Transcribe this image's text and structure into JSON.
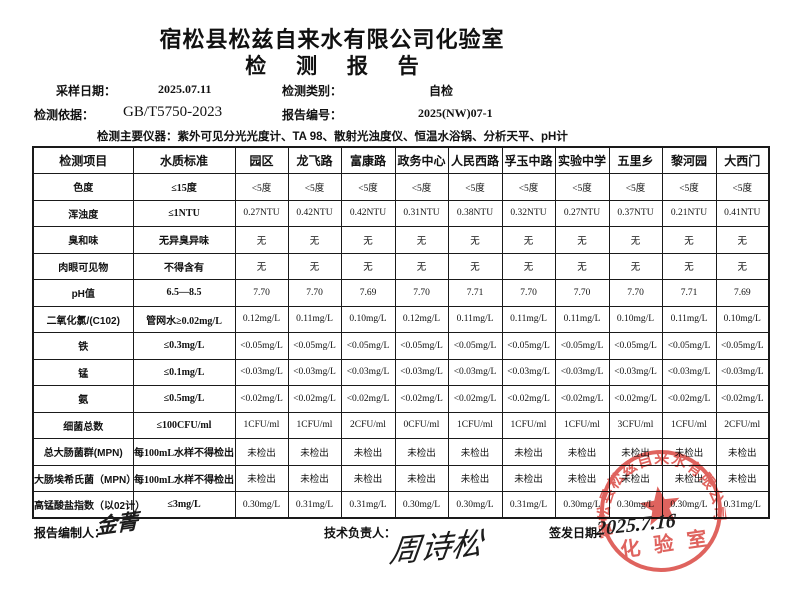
{
  "page": {
    "title": "宿松县松兹自来水有限公司化验室",
    "subtitle": "检 测 报 告"
  },
  "meta": {
    "sample_date_label": "采样日期：",
    "sample_date": "2025.07.11",
    "test_type_label": "检测类别：",
    "test_type": "自检",
    "basis_label": "检测依据：",
    "basis": "GB/T5750-2023",
    "report_no_label": "报告编号：",
    "report_no": "2025(NW)07-1",
    "instruments": "检测主要仪器：紫外可见分光光度计、TA 98、散射光浊度仪、恒温水浴锅、分析天平、pH计"
  },
  "table": {
    "columns": [
      "检测项目",
      "水质标准",
      "园区",
      "龙飞路",
      "富康路",
      "政务中心",
      "人民西路",
      "孚玉中路",
      "实验中学",
      "五里乡",
      "黎河园",
      "大西门"
    ],
    "rows": [
      [
        "色度",
        "≤15度",
        "<5度",
        "<5度",
        "<5度",
        "<5度",
        "<5度",
        "<5度",
        "<5度",
        "<5度",
        "<5度",
        "<5度"
      ],
      [
        "浑浊度",
        "≤1NTU",
        "0.27NTU",
        "0.42NTU",
        "0.42NTU",
        "0.31NTU",
        "0.38NTU",
        "0.32NTU",
        "0.27NTU",
        "0.37NTU",
        "0.21NTU",
        "0.41NTU"
      ],
      [
        "臭和味",
        "无异臭异味",
        "无",
        "无",
        "无",
        "无",
        "无",
        "无",
        "无",
        "无",
        "无",
        "无"
      ],
      [
        "肉眼可见物",
        "不得含有",
        "无",
        "无",
        "无",
        "无",
        "无",
        "无",
        "无",
        "无",
        "无",
        "无"
      ],
      [
        "pH值",
        "6.5—8.5",
        "7.70",
        "7.70",
        "7.69",
        "7.70",
        "7.71",
        "7.70",
        "7.70",
        "7.70",
        "7.71",
        "7.69"
      ],
      [
        "二氧化氯/(C102)",
        "管网水≥0.02mg/L",
        "0.12mg/L",
        "0.11mg/L",
        "0.10mg/L",
        "0.12mg/L",
        "0.11mg/L",
        "0.11mg/L",
        "0.11mg/L",
        "0.10mg/L",
        "0.11mg/L",
        "0.10mg/L"
      ],
      [
        "铁",
        "≤0.3mg/L",
        "<0.05mg/L",
        "<0.05mg/L",
        "<0.05mg/L",
        "<0.05mg/L",
        "<0.05mg/L",
        "<0.05mg/L",
        "<0.05mg/L",
        "<0.05mg/L",
        "<0.05mg/L",
        "<0.05mg/L"
      ],
      [
        "锰",
        "≤0.1mg/L",
        "<0.03mg/L",
        "<0.03mg/L",
        "<0.03mg/L",
        "<0.03mg/L",
        "<0.03mg/L",
        "<0.03mg/L",
        "<0.03mg/L",
        "<0.03mg/L",
        "<0.03mg/L",
        "<0.03mg/L"
      ],
      [
        "氨",
        "≤0.5mg/L",
        "<0.02mg/L",
        "<0.02mg/L",
        "<0.02mg/L",
        "<0.02mg/L",
        "<0.02mg/L",
        "<0.02mg/L",
        "<0.02mg/L",
        "<0.02mg/L",
        "<0.02mg/L",
        "<0.02mg/L"
      ],
      [
        "细菌总数",
        "≤100CFU/ml",
        "1CFU/ml",
        "1CFU/ml",
        "2CFU/ml",
        "0CFU/ml",
        "1CFU/ml",
        "1CFU/ml",
        "1CFU/ml",
        "3CFU/ml",
        "1CFU/ml",
        "2CFU/ml"
      ],
      [
        "总大肠菌群(MPN)",
        "每100mL水样不得检出",
        "未检出",
        "未检出",
        "未检出",
        "未检出",
        "未检出",
        "未检出",
        "未检出",
        "未检出",
        "未检出",
        "未检出"
      ],
      [
        "大肠埃希氏菌（MPN）",
        "每100mL水样不得检出",
        "未检出",
        "未检出",
        "未检出",
        "未检出",
        "未检出",
        "未检出",
        "未检出",
        "未检出",
        "未检出",
        "未检出"
      ],
      [
        "高锰酸盐指数（以02计）",
        "≤3mg/L",
        "0.30mg/L",
        "0.31mg/L",
        "0.31mg/L",
        "0.30mg/L",
        "0.30mg/L",
        "0.31mg/L",
        "0.30mg/L",
        "0.30mg/L",
        "0.30mg/L",
        "0.31mg/L"
      ]
    ]
  },
  "footer": {
    "preparer_label": "报告编制人：",
    "preparer_signature": "金菁",
    "tech_lead_label": "技术负责人：",
    "tech_lead_signature": "周诗松",
    "issue_date_label": "签发日期：",
    "issue_date": "2025.7.16"
  },
  "stamp": {
    "arc_text": "宿松县松兹自来水有限公司",
    "bottom_text": "化 验 室",
    "color": "#d8403a"
  }
}
